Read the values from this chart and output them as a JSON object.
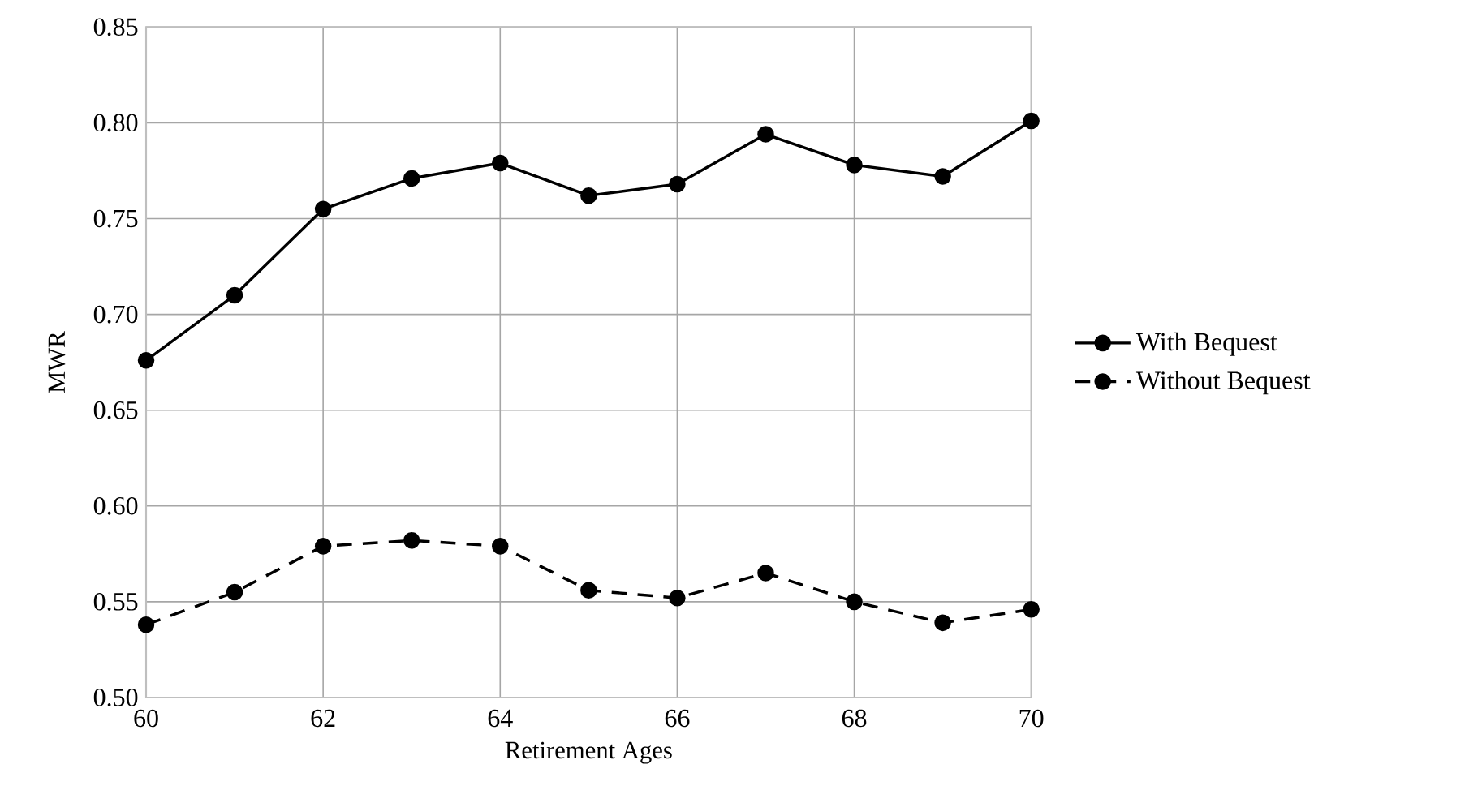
{
  "chart_data": {
    "type": "line",
    "xlabel": "Retirement Ages",
    "ylabel": "MWR",
    "x": [
      60,
      61,
      62,
      63,
      64,
      65,
      66,
      67,
      68,
      69,
      70
    ],
    "series": [
      {
        "name": "With Bequest",
        "color": "#000000",
        "line_style": "solid",
        "values": [
          0.676,
          0.71,
          0.755,
          0.771,
          0.779,
          0.762,
          0.768,
          0.794,
          0.778,
          0.772,
          0.801
        ]
      },
      {
        "name": "Without Bequest",
        "color": "#000000",
        "line_style": "dashed",
        "values": [
          0.538,
          0.555,
          0.579,
          0.582,
          0.579,
          0.556,
          0.552,
          0.565,
          0.55,
          0.539,
          0.546
        ]
      }
    ],
    "xlim": [
      60,
      70
    ],
    "xticks": [
      60,
      62,
      64,
      66,
      68,
      70
    ],
    "ylim": [
      0.5,
      0.85
    ],
    "yticks": [
      {
        "value": 0.5,
        "label": "0.50"
      },
      {
        "value": 0.55,
        "label": "0.55"
      },
      {
        "value": 0.6,
        "label": "0.60"
      },
      {
        "value": 0.65,
        "label": "0.65"
      },
      {
        "value": 0.7,
        "label": "0.70"
      },
      {
        "value": 0.75,
        "label": "0.75"
      },
      {
        "value": 0.8,
        "label": "0.80"
      },
      {
        "value": 0.85,
        "label": "0.85"
      }
    ],
    "grid": true,
    "legend": "right",
    "marker": "circle"
  }
}
